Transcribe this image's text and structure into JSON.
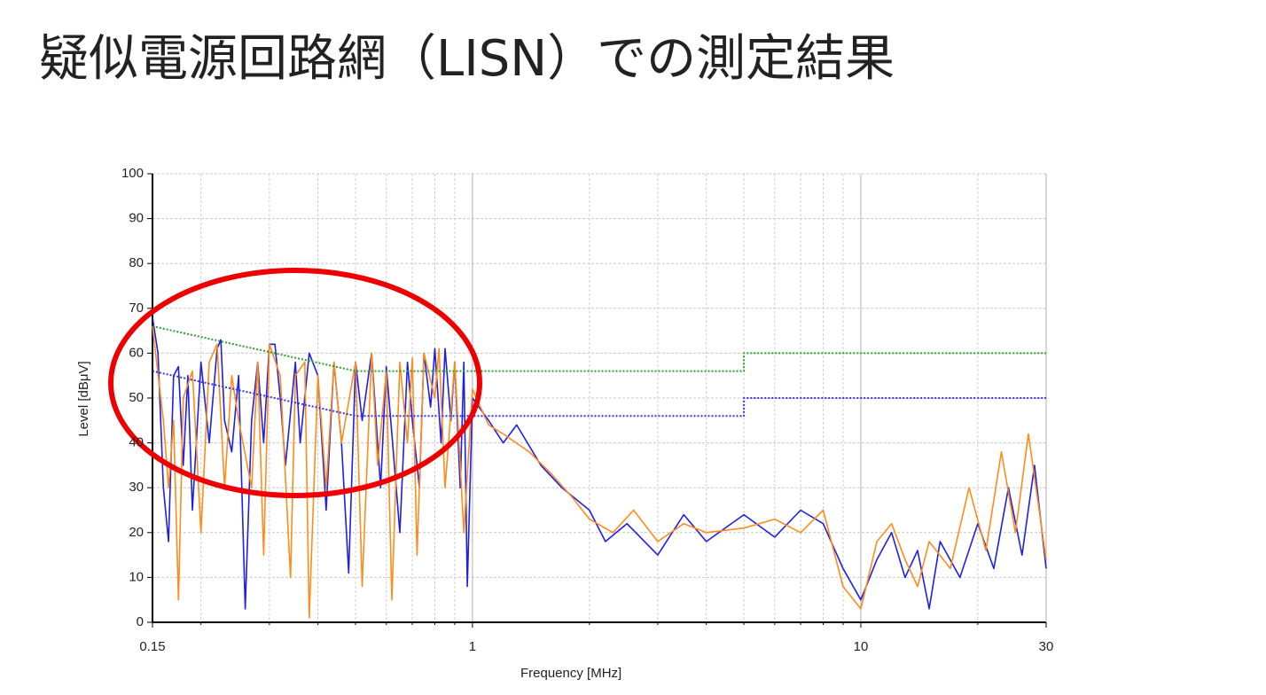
{
  "chart_data": {
    "type": "line",
    "title": "疑似電源回路網（LISN）での測定結果",
    "x_label": "Frequency [MHz]",
    "y_label": "Level [dBμV]",
    "xscale": "log",
    "xlim": [
      0.15,
      30
    ],
    "xticks": [
      0.15,
      1,
      10,
      30
    ],
    "xminorticks": [
      0.2,
      0.3,
      0.4,
      0.5,
      0.6,
      0.7,
      0.8,
      0.9,
      2,
      3,
      4,
      5,
      6,
      7,
      8,
      9,
      20
    ],
    "ylim": [
      0,
      100
    ],
    "yticks": [
      0,
      10,
      20,
      30,
      40,
      50,
      60,
      70,
      80,
      90,
      100
    ],
    "grid": true,
    "series": [
      {
        "color": "#1f1fe8",
        "style": "solid",
        "x": [
          0.15,
          0.155,
          0.16,
          0.165,
          0.17,
          0.175,
          0.18,
          0.185,
          0.19,
          0.2,
          0.21,
          0.22,
          0.225,
          0.23,
          0.24,
          0.25,
          0.26,
          0.27,
          0.28,
          0.29,
          0.3,
          0.31,
          0.32,
          0.33,
          0.35,
          0.36,
          0.38,
          0.4,
          0.42,
          0.44,
          0.46,
          0.48,
          0.5,
          0.52,
          0.55,
          0.58,
          0.6,
          0.62,
          0.65,
          0.68,
          0.7,
          0.73,
          0.75,
          0.78,
          0.8,
          0.83,
          0.85,
          0.88,
          0.9,
          0.93,
          0.95,
          0.97,
          1.0,
          1.1,
          1.2,
          1.3,
          1.5,
          1.7,
          2,
          2.2,
          2.5,
          3,
          3.5,
          4,
          5,
          6,
          7,
          8,
          9,
          10,
          11,
          12,
          13,
          14,
          15,
          16,
          18,
          20,
          22,
          24,
          26,
          28,
          30
        ],
        "values": [
          68,
          60,
          30,
          18,
          55,
          57,
          35,
          55,
          25,
          58,
          40,
          61,
          63,
          45,
          38,
          55,
          3,
          45,
          58,
          40,
          62,
          62,
          50,
          35,
          58,
          40,
          60,
          55,
          25,
          58,
          40,
          11,
          58,
          45,
          60,
          30,
          57,
          42,
          20,
          58,
          45,
          30,
          60,
          48,
          61,
          40,
          61,
          45,
          58,
          30,
          58,
          8,
          50,
          45,
          40,
          44,
          35,
          30,
          25,
          18,
          22,
          15,
          24,
          18,
          24,
          19,
          25,
          22,
          12,
          5,
          14,
          20,
          10,
          16,
          3,
          18,
          10,
          22,
          12,
          30,
          15,
          35,
          12
        ]
      },
      {
        "color": "#ff8c1a",
        "style": "solid",
        "x": [
          0.15,
          0.16,
          0.165,
          0.17,
          0.175,
          0.18,
          0.19,
          0.2,
          0.21,
          0.22,
          0.23,
          0.24,
          0.25,
          0.27,
          0.28,
          0.29,
          0.3,
          0.32,
          0.34,
          0.35,
          0.37,
          0.38,
          0.4,
          0.42,
          0.44,
          0.46,
          0.5,
          0.52,
          0.55,
          0.57,
          0.6,
          0.62,
          0.65,
          0.68,
          0.7,
          0.72,
          0.75,
          0.8,
          0.82,
          0.85,
          0.9,
          0.95,
          1.0,
          1.1,
          1.2,
          1.4,
          1.6,
          1.8,
          2,
          2.3,
          2.6,
          3,
          3.5,
          4,
          5,
          6,
          7,
          8,
          9,
          10,
          11,
          12,
          13,
          14,
          15,
          17,
          19,
          21,
          23,
          25,
          27,
          30
        ],
        "values": [
          66,
          45,
          30,
          45,
          5,
          50,
          56,
          20,
          58,
          62,
          30,
          55,
          45,
          30,
          58,
          15,
          62,
          55,
          10,
          55,
          58,
          1,
          55,
          30,
          58,
          40,
          58,
          8,
          60,
          35,
          56,
          5,
          58,
          40,
          59,
          15,
          60,
          50,
          61,
          30,
          58,
          20,
          52,
          44,
          42,
          38,
          33,
          28,
          23,
          20,
          25,
          18,
          22,
          20,
          21,
          23,
          20,
          25,
          8,
          3,
          18,
          22,
          14,
          8,
          18,
          12,
          30,
          16,
          38,
          20,
          42,
          14
        ]
      },
      {
        "color": "#2e9e2e",
        "style": "dotted",
        "x": [
          0.15,
          0.5,
          5,
          5,
          30
        ],
        "values": [
          66,
          56,
          56,
          60,
          60
        ]
      },
      {
        "color": "#3333ee",
        "style": "dotted",
        "x": [
          0.15,
          0.5,
          5,
          5,
          30
        ],
        "values": [
          56,
          46,
          46,
          50,
          50
        ]
      }
    ]
  }
}
